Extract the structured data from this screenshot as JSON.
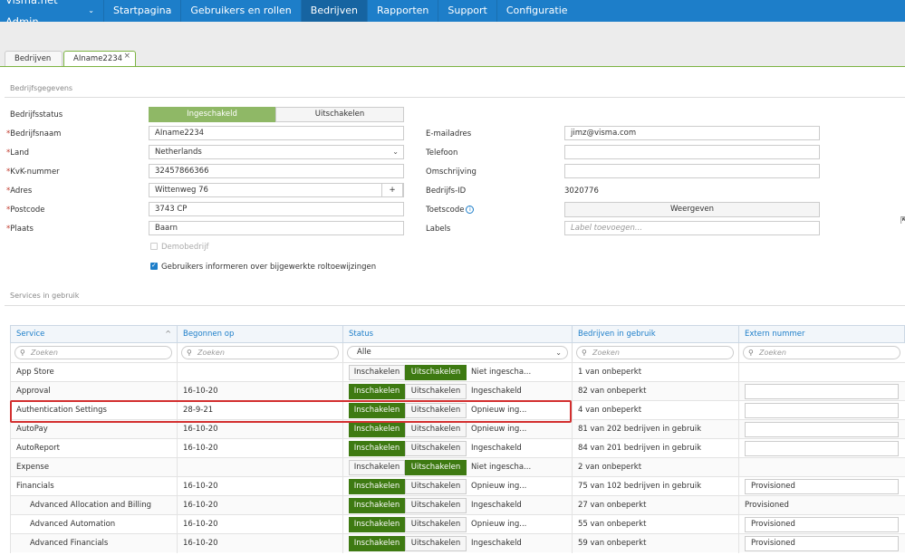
{
  "topnav": {
    "brand": "Visma.net Admin",
    "items": [
      "Startpagina",
      "Gebruikers en rollen",
      "Bedrijven",
      "Rapporten",
      "Support",
      "Configuratie"
    ],
    "active_index": 2
  },
  "tabs": [
    {
      "label": "Bedrijven"
    },
    {
      "label": "AIname2234"
    }
  ],
  "company": {
    "section_title": "Bedrijfsgegevens",
    "status_label": "Bedrijfsstatus",
    "status_on": "Ingeschakeld",
    "status_off": "Uitschakelen",
    "name_label": "Bedrijfsnaam",
    "name_value": "AIname2234",
    "country_label": "Land",
    "country_value": "Netherlands",
    "kvk_label": "KvK-nummer",
    "kvk_value": "32457866366",
    "address_label": "Adres",
    "address_value": "Wittenweg 76",
    "address_plus": "+",
    "postcode_label": "Postcode",
    "postcode_value": "3743 CP",
    "city_label": "Plaats",
    "city_value": "Baarn",
    "demo_label": "Demobedrijf",
    "notify_label": "Gebruikers informeren over bijgewerkte roltoewijzingen",
    "email_label": "E-mailadres",
    "email_value": "jimz@visma.com",
    "phone_label": "Telefoon",
    "phone_value": "",
    "desc_label": "Omschrijving",
    "desc_value": "",
    "id_label": "Bedrijfs-ID",
    "id_value": "3020776",
    "testcode_label": "Toetscode",
    "testcode_button": "Weergeven",
    "labels_label": "Labels",
    "labels_placeholder": "Label toevoegen..."
  },
  "services": {
    "section_title": "Services in gebruik",
    "columns": [
      "Service",
      "Begonnen op",
      "Status",
      "Bedrijven in gebruik",
      "Extern nummer"
    ],
    "search_placeholder": "Zoeken",
    "status_filter": "Alle",
    "btn_on": "Inschakelen",
    "btn_off": "Uitschakelen",
    "rows": [
      {
        "service": "App Store",
        "started": "",
        "enabled": false,
        "status": "Niet ingescha...",
        "usage": "1 van onbeperkt",
        "ext": null,
        "indent": false
      },
      {
        "service": "Approval",
        "started": "16-10-20",
        "enabled": true,
        "status": "Ingeschakeld",
        "usage": "82 van onbeperkt",
        "ext": "",
        "indent": false
      },
      {
        "service": "Authentication Settings",
        "started": "28-9-21",
        "enabled": true,
        "status": "Opnieuw ing...",
        "usage": "4 van onbeperkt",
        "ext": "",
        "indent": false
      },
      {
        "service": "AutoPay",
        "started": "16-10-20",
        "enabled": true,
        "status": "Opnieuw ing...",
        "usage": "81 van 202 bedrijven in gebruik",
        "ext": "",
        "indent": false
      },
      {
        "service": "AutoReport",
        "started": "16-10-20",
        "enabled": true,
        "status": "Ingeschakeld",
        "usage": "84 van 201 bedrijven in gebruik",
        "ext": "",
        "indent": false
      },
      {
        "service": "Expense",
        "started": "",
        "enabled": false,
        "status": "Niet ingescha...",
        "usage": "2 van onbeperkt",
        "ext": null,
        "indent": false
      },
      {
        "service": "Financials",
        "started": "16-10-20",
        "enabled": true,
        "status": "Opnieuw ing...",
        "usage": "75 van 102 bedrijven in gebruik",
        "ext": "Provisioned",
        "indent": false
      },
      {
        "service": "Advanced Allocation and Billing",
        "started": "16-10-20",
        "enabled": true,
        "status": "Ingeschakeld",
        "usage": "27 van onbeperkt",
        "ext_text": "Provisioned",
        "ext": null,
        "indent": true
      },
      {
        "service": "Advanced Automation",
        "started": "16-10-20",
        "enabled": true,
        "status": "Opnieuw ing...",
        "usage": "55 van onbeperkt",
        "ext": "Provisioned",
        "indent": true
      },
      {
        "service": "Advanced Financials",
        "started": "16-10-20",
        "enabled": true,
        "status": "Ingeschakeld",
        "usage": "59 van onbeperkt",
        "ext": "Provisioned",
        "indent": true
      }
    ]
  }
}
